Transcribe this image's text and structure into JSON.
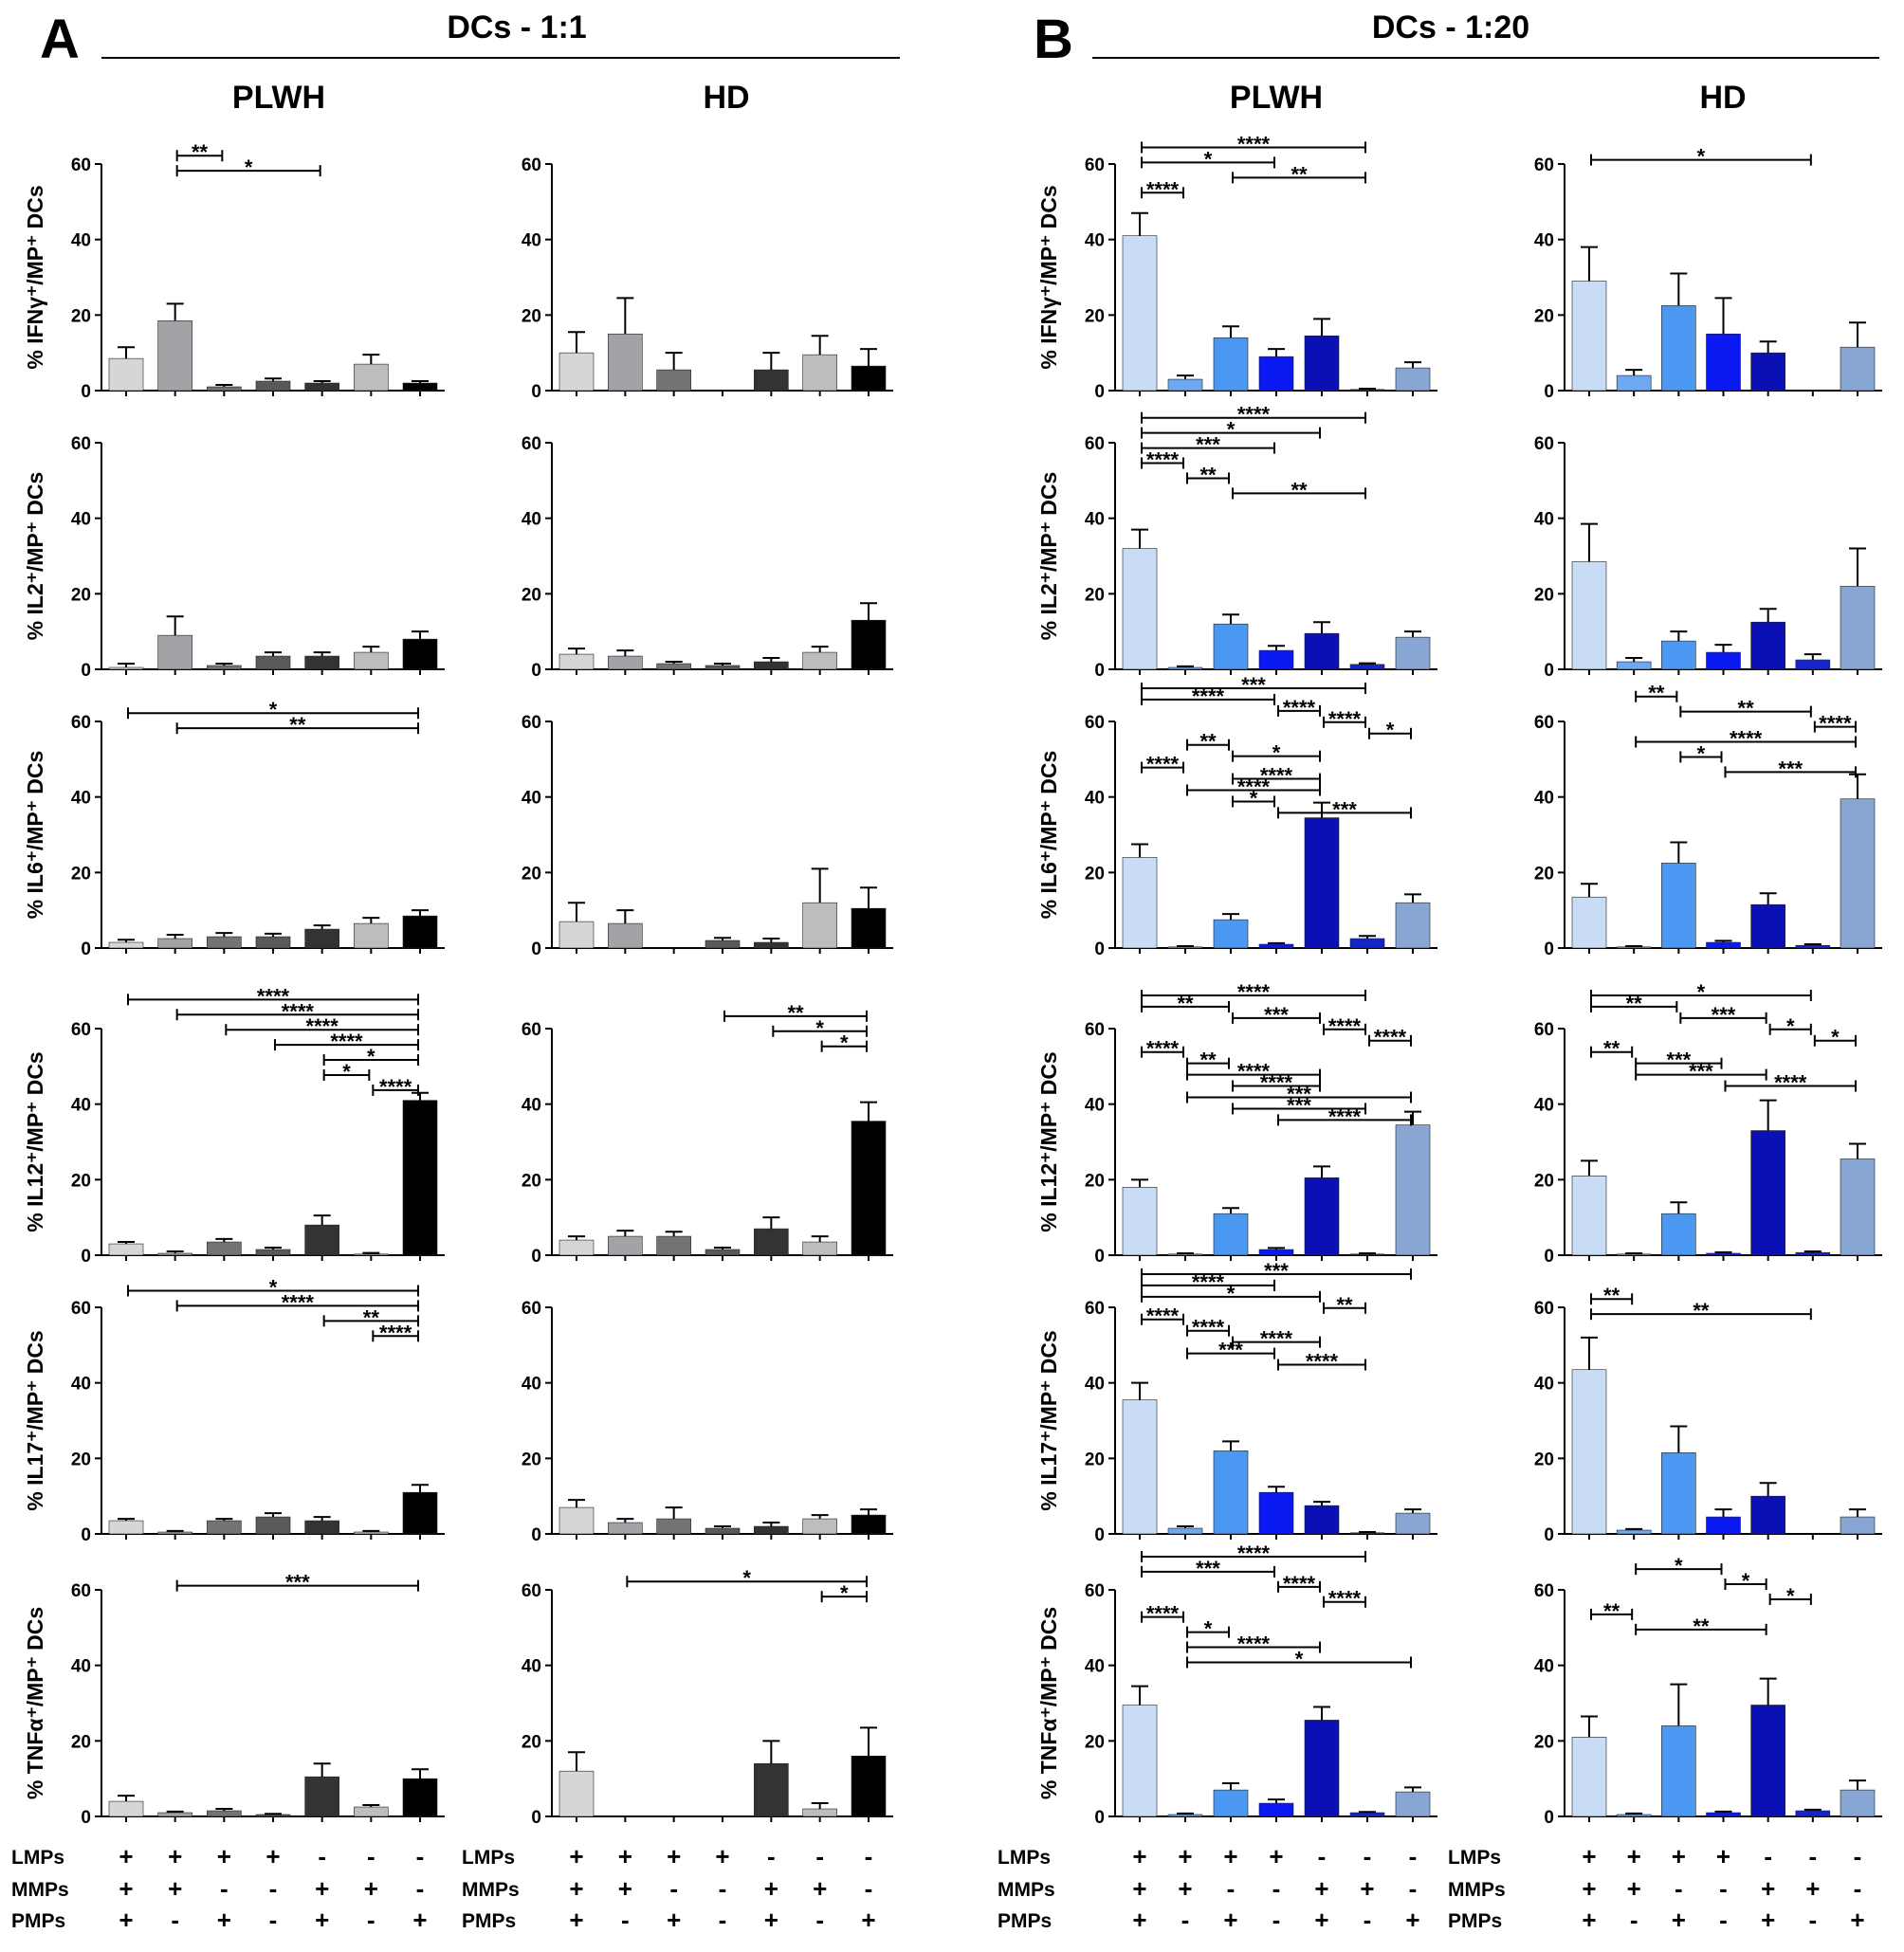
{
  "panels": {
    "A": {
      "letter": "A",
      "title": "DCs - 1:1"
    },
    "B": {
      "letter": "B",
      "title": "DCs - 1:20"
    }
  },
  "groups": [
    "PLWH",
    "HD",
    "PLWH",
    "HD"
  ],
  "treatment_table": {
    "rows": [
      {
        "label": "LMPs",
        "signs": [
          "+",
          "+",
          "+",
          "+",
          "-",
          "-",
          "-"
        ]
      },
      {
        "label": "MMPs",
        "signs": [
          "+",
          "+",
          "-",
          "-",
          "+",
          "+",
          "-"
        ]
      },
      {
        "label": "PMPs",
        "signs": [
          "+",
          "-",
          "+",
          "-",
          "+",
          "-",
          "+"
        ]
      }
    ]
  },
  "palettes": {
    "A": [
      "#d6d6d6",
      "#a3a3a7",
      "#737373",
      "#595959",
      "#333333",
      "#bdbdbd",
      "#000000"
    ],
    "B": [
      "#c8dcf6",
      "#6ea8f2",
      "#4a98f2",
      "#0a18f2",
      "#0b10b4",
      "#1426c8",
      "#88a6d4"
    ]
  },
  "chart_data": [
    {
      "type": "bar",
      "panel": "A",
      "group": "PLWH",
      "cytokine": "IFNγ",
      "ylabel": "% IFNγ⁺/MP⁺ DCs",
      "ylim": [
        0,
        60
      ],
      "yticks": [
        0,
        20,
        40,
        60
      ],
      "values": [
        8.5,
        18.5,
        1,
        2.5,
        2,
        7,
        2
      ],
      "errors": [
        3,
        4.5,
        0.5,
        0.7,
        0.5,
        2.5,
        0.5
      ],
      "significance": [
        [
          2,
          3,
          "**"
        ],
        [
          2,
          5,
          "*"
        ]
      ]
    },
    {
      "type": "bar",
      "panel": "A",
      "group": "HD",
      "cytokine": "IFNγ",
      "ylabel": "% IFNγ⁺/MP⁺ DCs",
      "ylim": [
        0,
        60
      ],
      "yticks": [
        0,
        20,
        40,
        60
      ],
      "values": [
        10,
        15,
        5.5,
        0,
        5.5,
        9.5,
        6.5
      ],
      "errors": [
        5.5,
        9.5,
        4.5,
        0,
        4.5,
        5,
        4.5
      ],
      "significance": []
    },
    {
      "type": "bar",
      "panel": "B",
      "group": "PLWH",
      "cytokine": "IFNγ",
      "ylabel": "% IFNγ⁺/MP⁺ DCs",
      "ylim": [
        0,
        60
      ],
      "yticks": [
        0,
        20,
        40,
        60
      ],
      "values": [
        41,
        3,
        14,
        9,
        14.5,
        0.3,
        6
      ],
      "errors": [
        6,
        1,
        3,
        2,
        4.5,
        0.2,
        1.5
      ],
      "significance": [
        [
          1,
          6,
          "****"
        ],
        [
          1,
          4,
          "*"
        ],
        [
          3,
          6,
          "**"
        ],
        [
          1,
          2,
          "****"
        ]
      ]
    },
    {
      "type": "bar",
      "panel": "B",
      "group": "HD",
      "cytokine": "IFNγ",
      "ylabel": "% IFNγ⁺/MP⁺ DCs",
      "ylim": [
        0,
        60
      ],
      "yticks": [
        0,
        20,
        40,
        60
      ],
      "values": [
        29,
        4,
        22.5,
        15,
        10,
        0,
        11.5
      ],
      "errors": [
        9,
        1.5,
        8.5,
        9.5,
        3,
        0,
        6.5
      ],
      "significance": [
        [
          1,
          6,
          "*"
        ]
      ]
    },
    {
      "type": "bar",
      "panel": "A",
      "group": "PLWH",
      "cytokine": "IL2",
      "ylabel": "% IL2⁺/MP⁺ DCs",
      "ylim": [
        0,
        60
      ],
      "yticks": [
        0,
        20,
        40,
        60
      ],
      "values": [
        0.5,
        9,
        1,
        3.5,
        3.5,
        4.5,
        8
      ],
      "errors": [
        1,
        5,
        0.5,
        1,
        1,
        1.5,
        2
      ],
      "significance": []
    },
    {
      "type": "bar",
      "panel": "A",
      "group": "HD",
      "cytokine": "IL2",
      "ylabel": "% IL2⁺/MP⁺ DCs",
      "ylim": [
        0,
        60
      ],
      "yticks": [
        0,
        20,
        40,
        60
      ],
      "values": [
        4,
        3.5,
        1.5,
        1,
        2,
        4.5,
        13
      ],
      "errors": [
        1.5,
        1.5,
        0.5,
        0.5,
        1,
        1.5,
        4.5
      ],
      "significance": []
    },
    {
      "type": "bar",
      "panel": "B",
      "group": "PLWH",
      "cytokine": "IL2",
      "ylabel": "% IL2⁺/MP⁺ DCs",
      "ylim": [
        0,
        60
      ],
      "yticks": [
        0,
        20,
        40,
        60
      ],
      "values": [
        32,
        0.5,
        12,
        5,
        9.5,
        1.3,
        8.5
      ],
      "errors": [
        5,
        0.3,
        2.5,
        1.2,
        3,
        0.3,
        1.5
      ],
      "significance": [
        [
          1,
          6,
          "****"
        ],
        [
          1,
          5,
          "*"
        ],
        [
          1,
          4,
          "***"
        ],
        [
          1,
          2,
          "****"
        ],
        [
          2,
          3,
          "**"
        ],
        [
          3,
          6,
          "**"
        ]
      ]
    },
    {
      "type": "bar",
      "panel": "B",
      "group": "HD",
      "cytokine": "IL2",
      "ylabel": "% IL2⁺/MP⁺ DCs",
      "ylim": [
        0,
        60
      ],
      "yticks": [
        0,
        20,
        40,
        60
      ],
      "values": [
        28.5,
        2,
        7.5,
        4.5,
        12.5,
        2.5,
        22
      ],
      "errors": [
        10,
        1,
        2.5,
        2,
        3.5,
        1.5,
        10
      ],
      "significance": []
    },
    {
      "type": "bar",
      "panel": "A",
      "group": "PLWH",
      "cytokine": "IL6",
      "ylabel": "% IL6⁺/MP⁺ DCs",
      "ylim": [
        0,
        60
      ],
      "yticks": [
        0,
        20,
        40,
        60
      ],
      "values": [
        1.5,
        2.5,
        3,
        3,
        5,
        6.5,
        8.5
      ],
      "errors": [
        0.7,
        1,
        1,
        0.8,
        1,
        1.5,
        1.5
      ],
      "significance": [
        [
          1,
          7,
          "*"
        ],
        [
          2,
          7,
          "**"
        ]
      ]
    },
    {
      "type": "bar",
      "panel": "A",
      "group": "HD",
      "cytokine": "IL6",
      "ylabel": "% IL6⁺/MP⁺ DCs",
      "ylim": [
        0,
        60
      ],
      "yticks": [
        0,
        20,
        40,
        60
      ],
      "values": [
        7,
        6.5,
        0,
        2,
        1.5,
        12,
        10.5
      ],
      "errors": [
        5,
        3.5,
        0,
        0.7,
        1,
        9,
        5.5
      ],
      "significance": []
    },
    {
      "type": "bar",
      "panel": "B",
      "group": "PLWH",
      "cytokine": "IL6",
      "ylabel": "% IL6⁺/MP⁺ DCs",
      "ylim": [
        0,
        60
      ],
      "yticks": [
        0,
        20,
        40,
        60
      ],
      "values": [
        24,
        0.3,
        7.5,
        1,
        34.5,
        2.5,
        12
      ],
      "errors": [
        3.5,
        0.2,
        1.5,
        0.3,
        4,
        0.7,
        2.2
      ],
      "significance": [
        [
          1,
          6,
          "***"
        ],
        [
          1,
          4,
          "****"
        ],
        [
          4,
          5,
          "****"
        ],
        [
          5,
          6,
          "****"
        ],
        [
          6,
          7,
          "*"
        ],
        [
          2,
          3,
          "**"
        ],
        [
          3,
          5,
          "*"
        ],
        [
          1,
          2,
          "****"
        ],
        [
          3,
          5,
          "****"
        ],
        [
          2,
          5,
          "****"
        ],
        [
          3,
          4,
          "*"
        ],
        [
          4,
          7,
          "***"
        ]
      ]
    },
    {
      "type": "bar",
      "panel": "B",
      "group": "HD",
      "cytokine": "IL6",
      "ylabel": "% IL6⁺/MP⁺ DCs",
      "ylim": [
        0,
        60
      ],
      "yticks": [
        0,
        20,
        40,
        60
      ],
      "values": [
        13.5,
        0.3,
        22.5,
        1.5,
        11.5,
        0.7,
        39.5
      ],
      "errors": [
        3.5,
        0.2,
        5.5,
        0.4,
        3,
        0.3,
        6.5
      ],
      "significance": [
        [
          2,
          3,
          "**"
        ],
        [
          3,
          6,
          "**"
        ],
        [
          6,
          7,
          "****"
        ],
        [
          2,
          7,
          "****"
        ],
        [
          3,
          4,
          "*"
        ],
        [
          4,
          7,
          "***"
        ]
      ]
    },
    {
      "type": "bar",
      "panel": "A",
      "group": "PLWH",
      "cytokine": "IL12",
      "ylabel": "% IL12⁺/MP⁺ DCs",
      "ylim": [
        0,
        60
      ],
      "yticks": [
        0,
        20,
        40,
        60
      ],
      "values": [
        3,
        0.5,
        3.5,
        1.5,
        8,
        0.3,
        41
      ],
      "errors": [
        0.5,
        0.5,
        0.8,
        0.5,
        2.5,
        0.3,
        2
      ],
      "significance": [
        [
          1,
          7,
          "****"
        ],
        [
          2,
          7,
          "****"
        ],
        [
          3,
          7,
          "****"
        ],
        [
          4,
          7,
          "****"
        ],
        [
          5,
          7,
          "*"
        ],
        [
          5,
          6,
          "*"
        ],
        [
          6,
          7,
          "****"
        ]
      ]
    },
    {
      "type": "bar",
      "panel": "A",
      "group": "HD",
      "cytokine": "IL12",
      "ylabel": "% IL12⁺/MP⁺ DCs",
      "ylim": [
        0,
        60
      ],
      "yticks": [
        0,
        20,
        40,
        60
      ],
      "values": [
        4,
        5,
        5,
        1.5,
        7,
        3.5,
        35.5
      ],
      "errors": [
        1,
        1.5,
        1.2,
        0.5,
        3,
        1.5,
        5
      ],
      "significance": [
        [
          4,
          7,
          "**"
        ],
        [
          5,
          7,
          "*"
        ],
        [
          6,
          7,
          "*"
        ]
      ]
    },
    {
      "type": "bar",
      "panel": "B",
      "group": "PLWH",
      "cytokine": "IL12",
      "ylabel": "% IL12⁺/MP⁺ DCs",
      "ylim": [
        0,
        60
      ],
      "yticks": [
        0,
        20,
        40,
        60
      ],
      "values": [
        18,
        0.3,
        11,
        1.5,
        20.5,
        0.3,
        34.5
      ],
      "errors": [
        2,
        0.2,
        1.5,
        0.4,
        3,
        0.2,
        3.5
      ],
      "significance": [
        [
          1,
          6,
          "****"
        ],
        [
          1,
          3,
          "**"
        ],
        [
          3,
          5,
          "***"
        ],
        [
          5,
          6,
          "****"
        ],
        [
          6,
          7,
          "****"
        ],
        [
          1,
          2,
          "****"
        ],
        [
          2,
          3,
          "**"
        ],
        [
          2,
          5,
          "****"
        ],
        [
          3,
          5,
          "****"
        ],
        [
          2,
          7,
          "***"
        ],
        [
          3,
          6,
          "***"
        ],
        [
          4,
          7,
          "****"
        ]
      ]
    },
    {
      "type": "bar",
      "panel": "B",
      "group": "HD",
      "cytokine": "IL12",
      "ylabel": "% IL12⁺/MP⁺ DCs",
      "ylim": [
        0,
        60
      ],
      "yticks": [
        0,
        20,
        40,
        60
      ],
      "values": [
        21,
        0.3,
        11,
        0.5,
        33,
        0.7,
        25.5
      ],
      "errors": [
        4,
        0.2,
        3,
        0.3,
        8,
        0.3,
        4
      ],
      "significance": [
        [
          1,
          6,
          "*"
        ],
        [
          1,
          3,
          "**"
        ],
        [
          3,
          5,
          "***"
        ],
        [
          5,
          6,
          "*"
        ],
        [
          6,
          7,
          "*"
        ],
        [
          1,
          2,
          "**"
        ],
        [
          2,
          4,
          "***"
        ],
        [
          2,
          5,
          "***"
        ],
        [
          4,
          7,
          "****"
        ]
      ]
    },
    {
      "type": "bar",
      "panel": "A",
      "group": "PLWH",
      "cytokine": "IL17",
      "ylabel": "% IL17⁺/MP⁺ DCs",
      "ylim": [
        0,
        60
      ],
      "yticks": [
        0,
        20,
        40,
        60
      ],
      "values": [
        3.5,
        0.5,
        3.5,
        4.5,
        3.5,
        0.5,
        11
      ],
      "errors": [
        0.5,
        0.3,
        0.5,
        1,
        1,
        0.3,
        2
      ],
      "significance": [
        [
          1,
          7,
          "*"
        ],
        [
          2,
          7,
          "****"
        ],
        [
          5,
          7,
          "**"
        ],
        [
          6,
          7,
          "****"
        ]
      ]
    },
    {
      "type": "bar",
      "panel": "A",
      "group": "HD",
      "cytokine": "IL17",
      "ylabel": "% IL17⁺/MP⁺ DCs",
      "ylim": [
        0,
        60
      ],
      "yticks": [
        0,
        20,
        40,
        60
      ],
      "values": [
        7,
        3,
        4,
        1.5,
        2,
        4,
        5
      ],
      "errors": [
        2,
        1,
        3,
        0.5,
        1,
        1,
        1.5
      ],
      "significance": []
    },
    {
      "type": "bar",
      "panel": "B",
      "group": "PLWH",
      "cytokine": "IL17",
      "ylabel": "% IL17⁺/MP⁺ DCs",
      "ylim": [
        0,
        60
      ],
      "yticks": [
        0,
        20,
        40,
        60
      ],
      "values": [
        35.5,
        1.5,
        22,
        11,
        7.5,
        0.3,
        5.5
      ],
      "errors": [
        4.5,
        0.5,
        2.5,
        1.5,
        1,
        0.2,
        1
      ],
      "significance": [
        [
          1,
          7,
          "***"
        ],
        [
          1,
          4,
          "****"
        ],
        [
          1,
          5,
          "*"
        ],
        [
          5,
          6,
          "**"
        ],
        [
          1,
          2,
          "****"
        ],
        [
          2,
          3,
          "****"
        ],
        [
          3,
          5,
          "****"
        ],
        [
          2,
          4,
          "***"
        ],
        [
          4,
          6,
          "****"
        ]
      ]
    },
    {
      "type": "bar",
      "panel": "B",
      "group": "HD",
      "cytokine": "IL17",
      "ylabel": "% IL17⁺/MP⁺ DCs",
      "ylim": [
        0,
        60
      ],
      "yticks": [
        0,
        20,
        40,
        60
      ],
      "values": [
        43.5,
        1,
        21.5,
        4.5,
        10,
        0,
        4.5
      ],
      "errors": [
        8.5,
        0.3,
        7,
        2,
        3.5,
        0,
        2
      ],
      "significance": [
        [
          1,
          2,
          "**"
        ],
        [
          1,
          6,
          "**"
        ]
      ]
    },
    {
      "type": "bar",
      "panel": "A",
      "group": "PLWH",
      "cytokine": "TNFα",
      "ylabel": "% TNFα⁺/MP⁺ DCs",
      "ylim": [
        0,
        60
      ],
      "yticks": [
        0,
        20,
        40,
        60
      ],
      "values": [
        4,
        1,
        1.5,
        0.5,
        10.5,
        2.5,
        10
      ],
      "errors": [
        1.5,
        0.3,
        0.5,
        0.2,
        3.5,
        0.5,
        2.5
      ],
      "significance": [
        [
          2,
          7,
          "***"
        ]
      ]
    },
    {
      "type": "bar",
      "panel": "A",
      "group": "HD",
      "cytokine": "TNFα",
      "ylabel": "% TNFα⁺/MP⁺ DCs",
      "ylim": [
        0,
        60
      ],
      "yticks": [
        0,
        20,
        40,
        60
      ],
      "values": [
        12,
        0,
        0,
        0,
        14,
        2,
        16
      ],
      "errors": [
        5,
        0,
        0,
        0,
        6,
        1.5,
        7.5
      ],
      "significance": [
        [
          2,
          7,
          "*"
        ],
        [
          6,
          7,
          "*"
        ]
      ]
    },
    {
      "type": "bar",
      "panel": "B",
      "group": "PLWH",
      "cytokine": "TNFα",
      "ylabel": "% TNFα⁺/MP⁺ DCs",
      "ylim": [
        0,
        60
      ],
      "yticks": [
        0,
        20,
        40,
        60
      ],
      "values": [
        29.5,
        0.5,
        7,
        3.5,
        25.5,
        1,
        6.5
      ],
      "errors": [
        5,
        0.3,
        1.8,
        1,
        3.5,
        0.2,
        1.2
      ],
      "significance": [
        [
          1,
          6,
          "****"
        ],
        [
          1,
          4,
          "***"
        ],
        [
          4,
          5,
          "****"
        ],
        [
          5,
          6,
          "****"
        ],
        [
          1,
          2,
          "****"
        ],
        [
          2,
          3,
          "*"
        ],
        [
          2,
          5,
          "****"
        ],
        [
          2,
          7,
          "*"
        ]
      ]
    },
    {
      "type": "bar",
      "panel": "B",
      "group": "HD",
      "cytokine": "TNFα",
      "ylabel": "% TNFα⁺/MP⁺ DCs",
      "ylim": [
        0,
        60
      ],
      "yticks": [
        0,
        20,
        40,
        60
      ],
      "values": [
        21,
        0.5,
        24,
        1,
        29.5,
        1.5,
        7
      ],
      "errors": [
        5.5,
        0.3,
        11,
        0.3,
        7,
        0.3,
        2.5
      ],
      "significance": [
        [
          2,
          4,
          "*"
        ],
        [
          4,
          5,
          "*"
        ],
        [
          5,
          6,
          "*"
        ],
        [
          1,
          2,
          "**"
        ],
        [
          2,
          5,
          "**"
        ]
      ]
    }
  ]
}
